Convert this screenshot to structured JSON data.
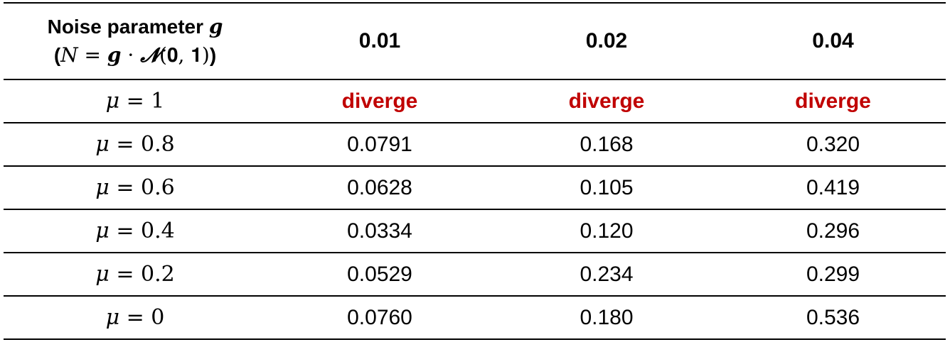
{
  "table": {
    "header": {
      "label_line1_text": "Noise parameter ",
      "label_line1_var": "g",
      "label_line2": {
        "open": "(",
        "N": "N",
        "eq": " = ",
        "g": "g",
        "dot": " · ",
        "script_n": "𝓝",
        "args": "(𝟎, 𝟏)",
        "close": ")"
      },
      "columns": [
        "0.01",
        "0.02",
        "0.04"
      ]
    },
    "rows": [
      {
        "mu_symbol": "μ",
        "mu_value": " = 1",
        "values": [
          "diverge",
          "diverge",
          "diverge"
        ],
        "diverged": true
      },
      {
        "mu_symbol": "μ",
        "mu_value": " = 0.8",
        "values": [
          "0.0791",
          "0.168",
          "0.320"
        ],
        "diverged": false
      },
      {
        "mu_symbol": "μ",
        "mu_value": " = 0.6",
        "values": [
          "0.0628",
          "0.105",
          "0.419"
        ],
        "diverged": false
      },
      {
        "mu_symbol": "μ",
        "mu_value": " = 0.4",
        "values": [
          "0.0334",
          "0.120",
          "0.296"
        ],
        "diverged": false
      },
      {
        "mu_symbol": "μ",
        "mu_value": " = 0.2",
        "values": [
          "0.0529",
          "0.234",
          "0.299"
        ],
        "diverged": false
      },
      {
        "mu_symbol": "μ",
        "mu_value": " = 0",
        "values": [
          "0.0760",
          "0.180",
          "0.536"
        ],
        "diverged": false
      }
    ],
    "colors": {
      "diverge": "#c00000",
      "text": "#000000",
      "rule": "#000000"
    }
  }
}
